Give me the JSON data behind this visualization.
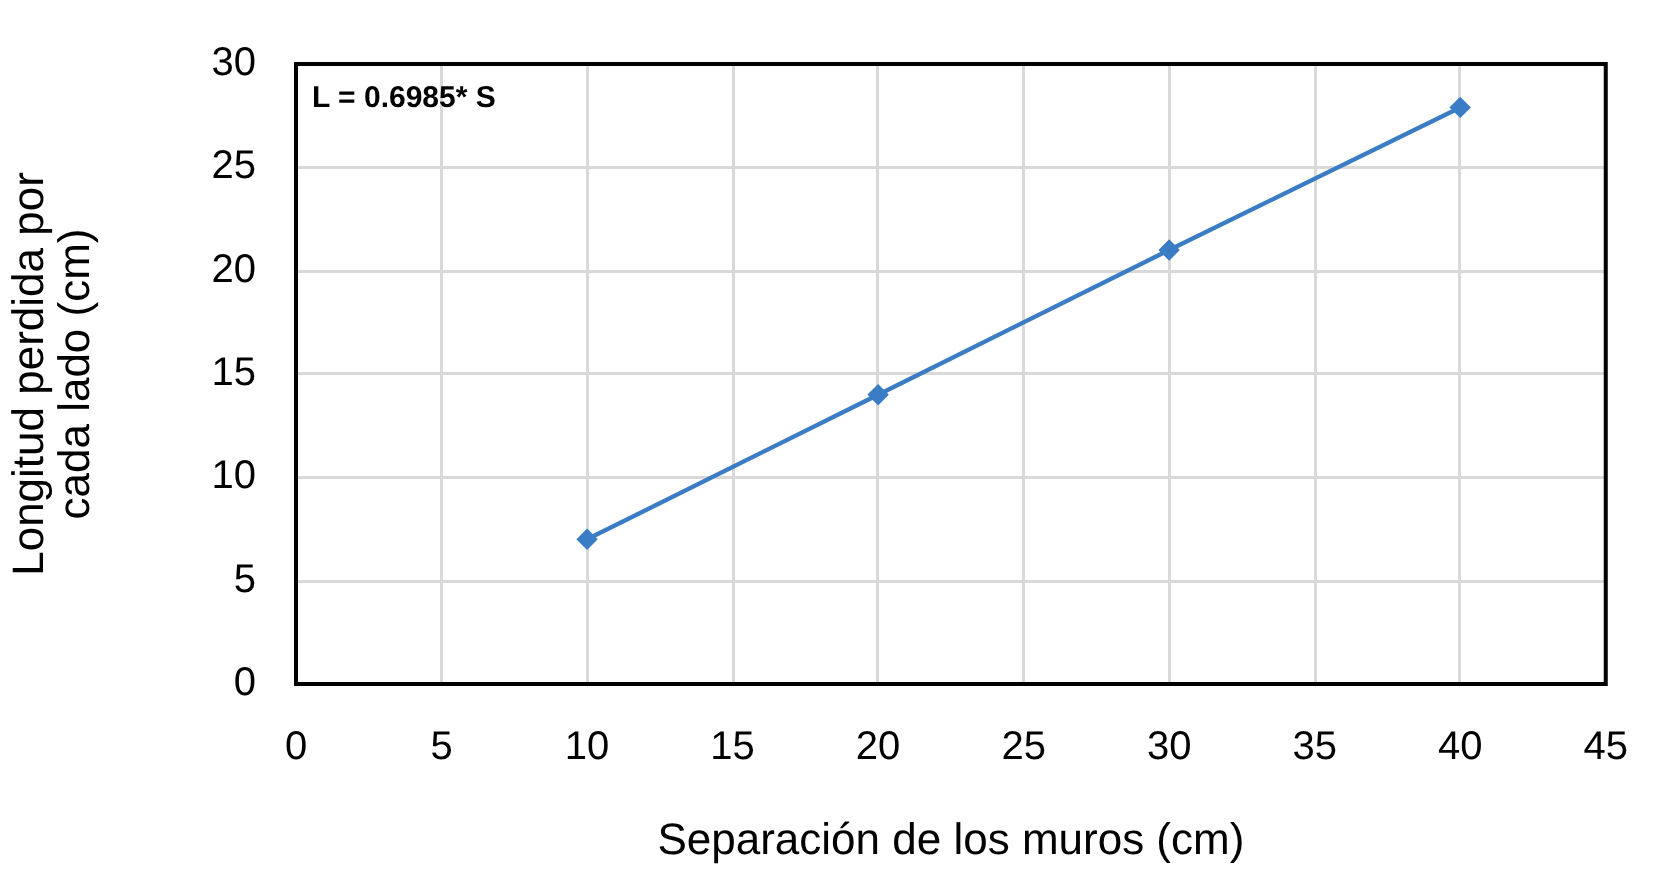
{
  "chart_data": {
    "type": "line",
    "xlabel": "Separación de los muros (cm)",
    "ylabel": "Longitud perdida por cada lado (cm)",
    "annotations": [
      "L = 0.6985* S"
    ],
    "x": [
      10,
      20,
      30,
      40
    ],
    "series": [
      {
        "color": "#3b7dc4",
        "values": [
          7,
          14,
          21,
          27.9
        ]
      }
    ],
    "xlim": [
      0,
      45
    ],
    "xticks": [
      0,
      5,
      10,
      15,
      20,
      25,
      30,
      35,
      40,
      45
    ],
    "ylim": [
      0,
      30
    ],
    "yticks": [
      0,
      5,
      10,
      15,
      20,
      25,
      30
    ],
    "grid": true,
    "marker": "diamond",
    "line_style": "solid"
  }
}
